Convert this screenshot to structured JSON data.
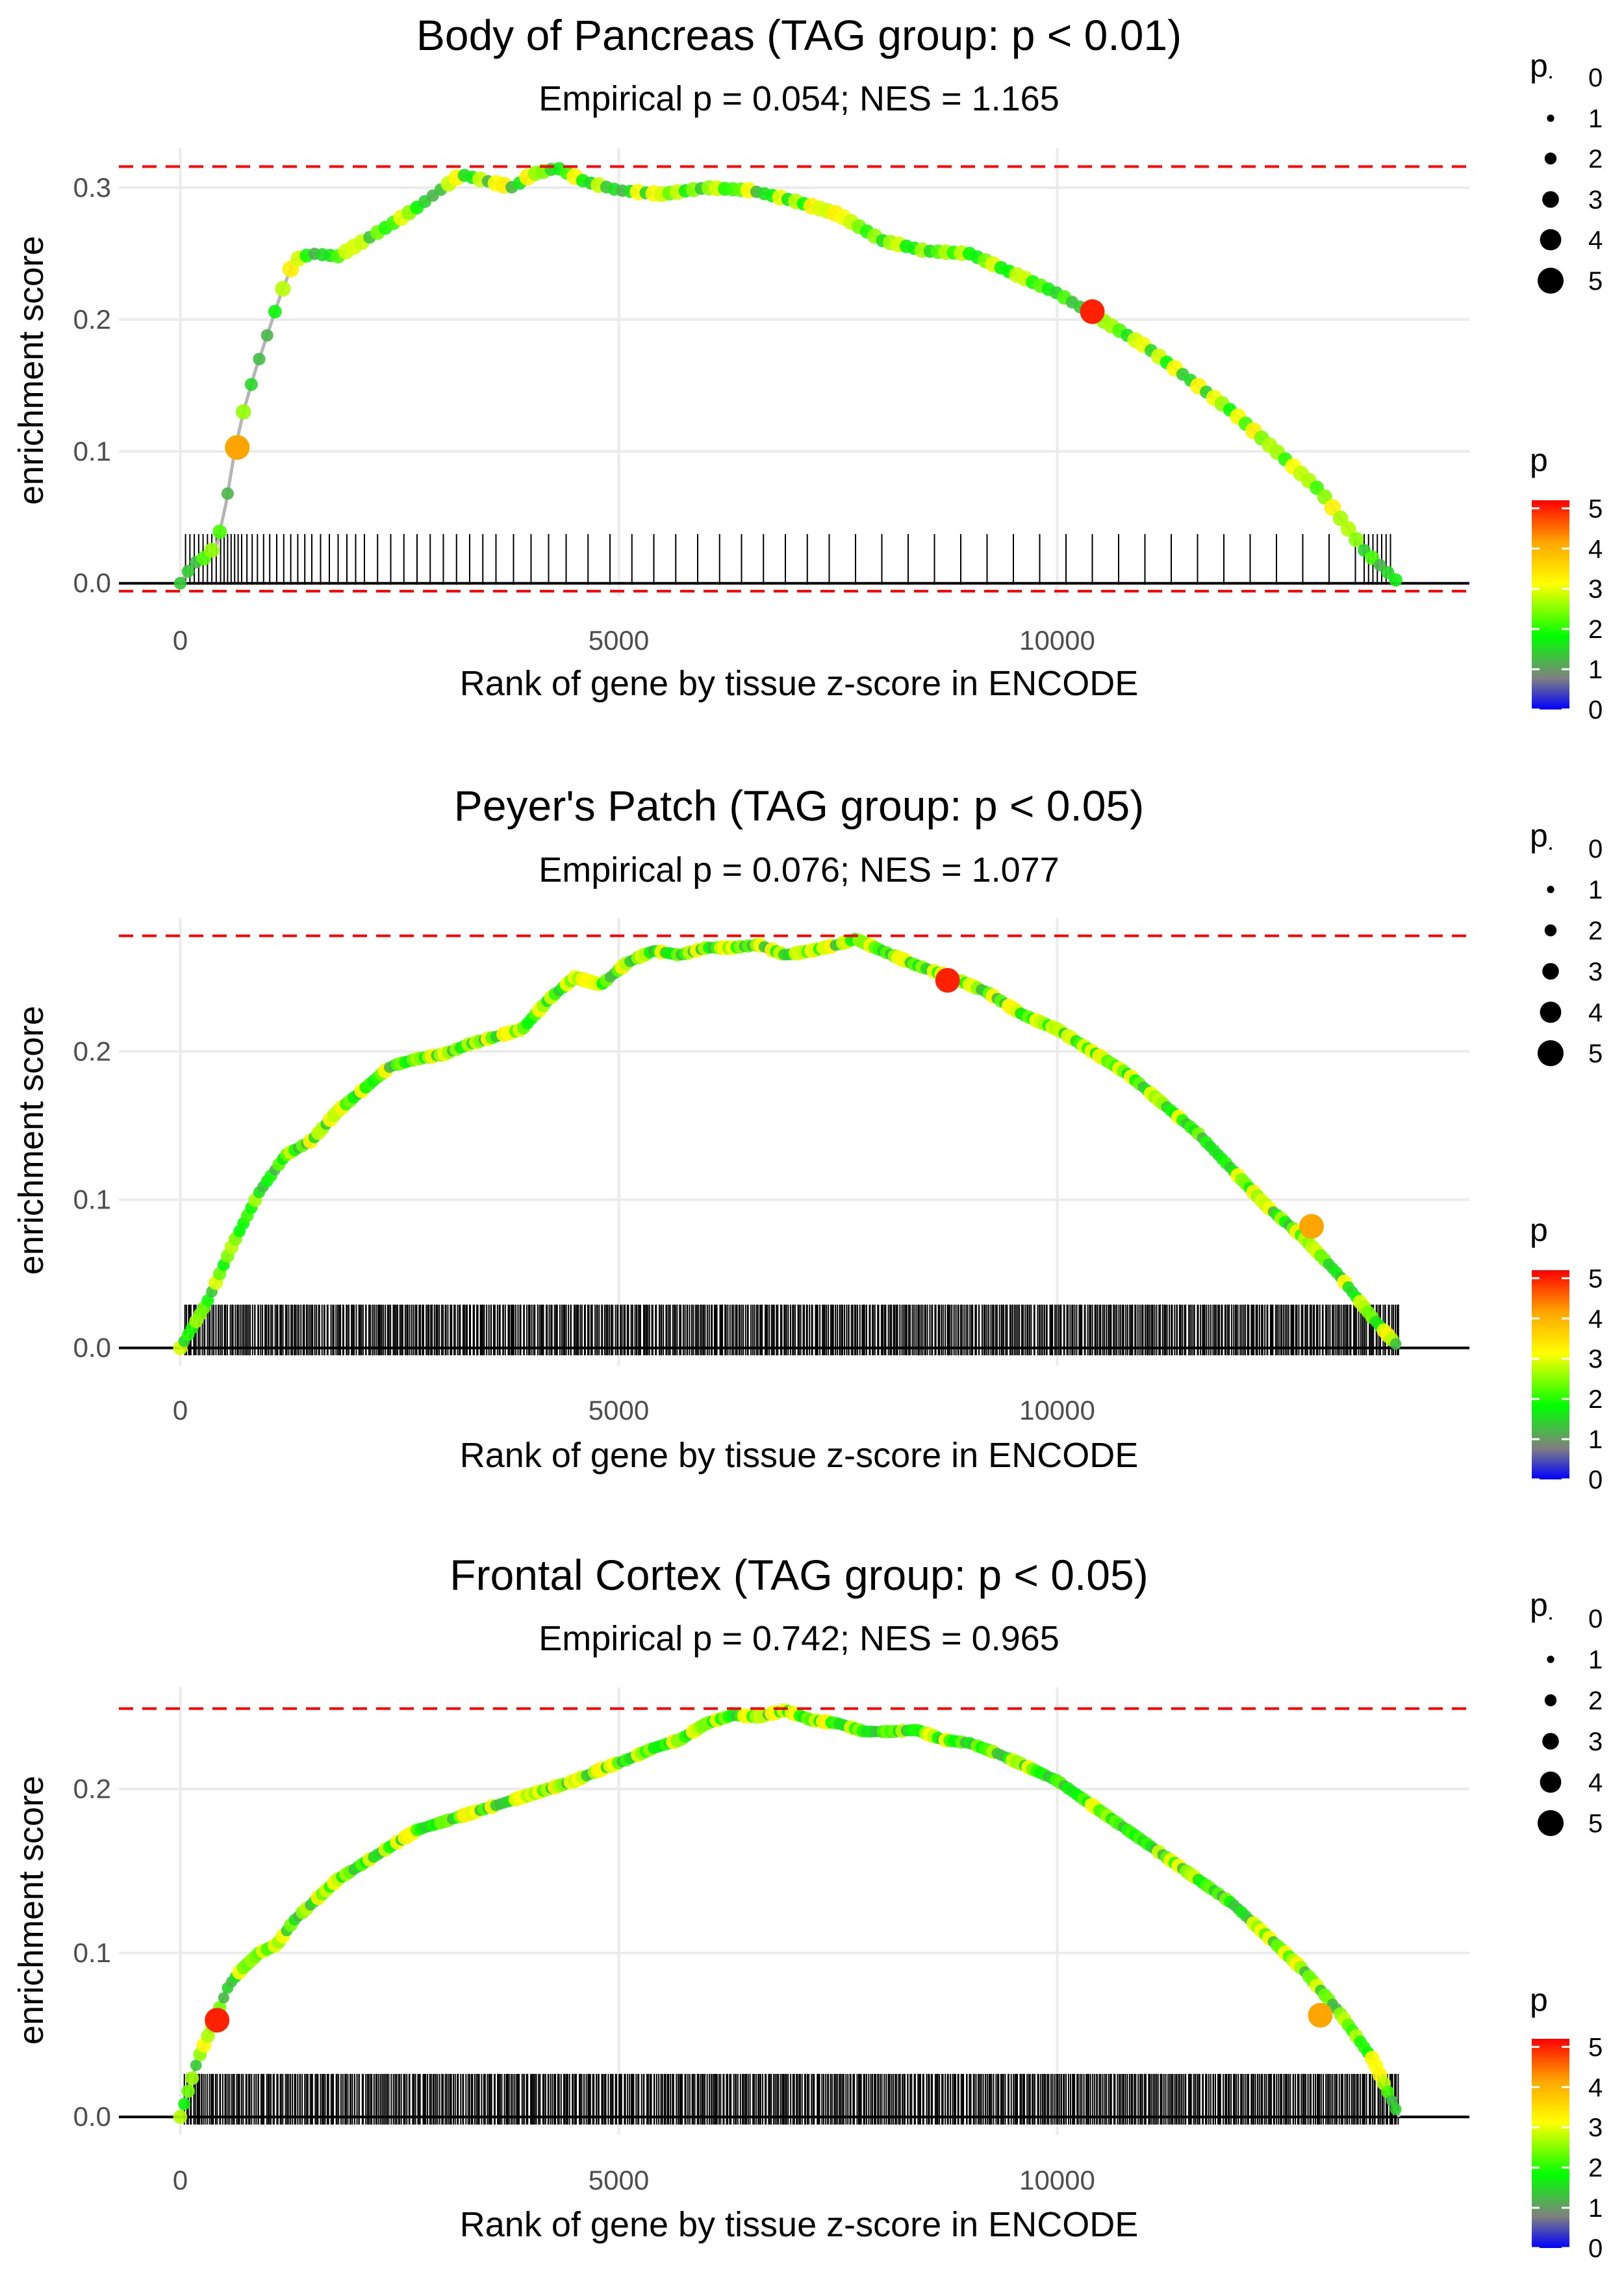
{
  "chart_data": [
    {
      "type": "line",
      "title": "Body of Pancreas (TAG group: p < 0.01)",
      "subtitle": "Empirical p = 0.054; NES = 1.165",
      "xlabel": "Rank of gene by tissue z-score in ENCODE",
      "ylabel": "enrichment score",
      "xlim": [
        -700,
        14700
      ],
      "ylim": [
        -0.01,
        0.33
      ],
      "xticks": [
        0,
        5000,
        10000
      ],
      "xtick_labels": [
        "0",
        "5000",
        "10000"
      ],
      "yticks": [
        0.0,
        0.1,
        0.2,
        0.3
      ],
      "ytick_labels": [
        "0.0",
        "0.1",
        "0.2",
        "0.3"
      ],
      "max_es": 0.316,
      "min_es": -0.006,
      "curve_x": [
        0,
        150,
        300,
        420,
        520,
        620,
        720,
        850,
        1000,
        1150,
        1300,
        1500,
        1800,
        2100,
        2400,
        2700,
        3000,
        3200,
        3500,
        3800,
        4000,
        4300,
        4600,
        5000,
        5500,
        6000,
        6500,
        7000,
        7500,
        8000,
        8500,
        9000,
        9500,
        10000,
        10500,
        11000,
        11500,
        12000,
        12500,
        13000,
        13500,
        13900
      ],
      "curve_y": [
        0.0,
        0.015,
        0.02,
        0.03,
        0.06,
        0.1,
        0.13,
        0.16,
        0.19,
        0.22,
        0.245,
        0.25,
        0.248,
        0.26,
        0.272,
        0.285,
        0.3,
        0.31,
        0.305,
        0.3,
        0.31,
        0.315,
        0.305,
        0.298,
        0.295,
        0.3,
        0.298,
        0.29,
        0.28,
        0.26,
        0.252,
        0.25,
        0.235,
        0.22,
        0.2,
        0.18,
        0.155,
        0.13,
        0.1,
        0.07,
        0.025,
        0.0
      ],
      "hit_ranks": [
        60,
        110,
        160,
        210,
        260,
        310,
        360,
        410,
        460,
        500,
        540,
        580,
        620,
        660,
        700,
        760,
        820,
        880,
        950,
        1020,
        1100,
        1180,
        1260,
        1340,
        1420,
        1500,
        1600,
        1700,
        1800,
        1900,
        2000,
        2100,
        2250,
        2400,
        2550,
        2700,
        2850,
        3000,
        3150,
        3300,
        3450,
        3600,
        3800,
        4000,
        4200,
        4400,
        4650,
        4900,
        5150,
        5400,
        5650,
        5900,
        6150,
        6400,
        6650,
        6900,
        7150,
        7400,
        7700,
        8000,
        8300,
        8600,
        8900,
        9200,
        9500,
        9800,
        10100,
        10400,
        10700,
        11000,
        11300,
        11600,
        11900,
        12200,
        12500,
        12800,
        13100,
        13400,
        13500,
        13550,
        13600,
        13650,
        13700,
        13750,
        13800
      ],
      "highlight_points": [
        {
          "x": 650,
          "y": 0.103,
          "p": 4.2
        },
        {
          "x": 10400,
          "y": 0.206,
          "p": 5.0
        }
      ],
      "size_legend": {
        "title": "p",
        "labels": [
          "0",
          "1",
          "2",
          "3",
          "4",
          "5"
        ]
      },
      "color_legend": {
        "title": "p",
        "labels": [
          "0",
          "1",
          "2",
          "3",
          "4",
          "5"
        ],
        "range": [
          0,
          5.2
        ]
      }
    },
    {
      "type": "line",
      "title": "Peyer's Patch (TAG group: p < 0.05)",
      "subtitle": "Empirical p = 0.076; NES = 1.077",
      "xlabel": "Rank of gene by tissue z-score in ENCODE",
      "ylabel": "enrichment score",
      "xlim": [
        -700,
        14700
      ],
      "ylim": [
        -0.012,
        0.29
      ],
      "xticks": [
        0,
        5000,
        10000
      ],
      "xtick_labels": [
        "0",
        "5000",
        "10000"
      ],
      "yticks": [
        0.0,
        0.1,
        0.2
      ],
      "ytick_labels": [
        "0.0",
        "0.1",
        "0.2"
      ],
      "max_es": 0.278,
      "curve_x": [
        0,
        300,
        600,
        900,
        1200,
        1500,
        1800,
        2100,
        2400,
        2700,
        3000,
        3300,
        3600,
        3900,
        4200,
        4500,
        4800,
        5100,
        5400,
        5700,
        6000,
        6300,
        6600,
        6900,
        7200,
        7500,
        7700,
        8000,
        8400,
        8800,
        9200,
        9600,
        10000,
        10400,
        10800,
        11200,
        11600,
        12000,
        12400,
        12800,
        13200,
        13600,
        13900
      ],
      "curve_y": [
        0.0,
        0.03,
        0.07,
        0.105,
        0.13,
        0.14,
        0.16,
        0.175,
        0.19,
        0.195,
        0.198,
        0.205,
        0.21,
        0.215,
        0.235,
        0.25,
        0.245,
        0.26,
        0.268,
        0.265,
        0.27,
        0.27,
        0.272,
        0.265,
        0.268,
        0.272,
        0.276,
        0.268,
        0.258,
        0.25,
        0.24,
        0.225,
        0.215,
        0.2,
        0.185,
        0.165,
        0.145,
        0.12,
        0.095,
        0.075,
        0.05,
        0.02,
        0.0
      ],
      "hit_density": "dense, ranks 0 to 13900",
      "highlight_points": [
        {
          "x": 8750,
          "y": 0.248,
          "p": 5.0
        },
        {
          "x": 12900,
          "y": 0.082,
          "p": 4.2
        }
      ],
      "size_legend": {
        "title": "p",
        "labels": [
          "0",
          "1",
          "2",
          "3",
          "4",
          "5"
        ]
      },
      "color_legend": {
        "title": "p",
        "labels": [
          "0",
          "1",
          "2",
          "3",
          "4",
          "5"
        ],
        "range": [
          0,
          5.2
        ]
      }
    },
    {
      "type": "line",
      "title": "Frontal Cortex (TAG group: p < 0.05)",
      "subtitle": "Empirical p = 0.742; NES = 0.965",
      "xlabel": "Rank of gene by tissue z-score in ENCODE",
      "ylabel": "enrichment score",
      "xlim": [
        -700,
        14700
      ],
      "ylim": [
        -0.011,
        0.262
      ],
      "xticks": [
        0,
        5000,
        10000
      ],
      "xtick_labels": [
        "0",
        "5000",
        "10000"
      ],
      "yticks": [
        0.0,
        0.1,
        0.2
      ],
      "ytick_labels": [
        "0.0",
        "0.1",
        "0.2"
      ],
      "max_es": 0.249,
      "curve_x": [
        0,
        200,
        400,
        550,
        700,
        900,
        1100,
        1300,
        1500,
        1800,
        2100,
        2400,
        2700,
        3000,
        3300,
        3600,
        3900,
        4200,
        4500,
        4800,
        5100,
        5400,
        5700,
        6000,
        6300,
        6600,
        6900,
        7200,
        7500,
        7800,
        8100,
        8400,
        8700,
        9000,
        9300,
        9600,
        10000,
        10400,
        10800,
        11200,
        11600,
        12000,
        12400,
        12800,
        13200,
        13600,
        13900
      ],
      "curve_y": [
        0.0,
        0.035,
        0.06,
        0.08,
        0.09,
        0.1,
        0.105,
        0.12,
        0.13,
        0.145,
        0.155,
        0.165,
        0.175,
        0.18,
        0.185,
        0.19,
        0.195,
        0.2,
        0.205,
        0.212,
        0.218,
        0.225,
        0.23,
        0.24,
        0.245,
        0.244,
        0.248,
        0.242,
        0.24,
        0.235,
        0.235,
        0.236,
        0.23,
        0.228,
        0.222,
        0.215,
        0.205,
        0.19,
        0.175,
        0.16,
        0.145,
        0.13,
        0.11,
        0.09,
        0.065,
        0.035,
        0.0
      ],
      "hit_density": "dense, ranks 0 to 13900",
      "highlight_points": [
        {
          "x": 420,
          "y": 0.059,
          "p": 5.0
        },
        {
          "x": 13000,
          "y": 0.062,
          "p": 4.2
        }
      ],
      "size_legend": {
        "title": "p",
        "labels": [
          "0",
          "1",
          "2",
          "3",
          "4",
          "5"
        ]
      },
      "color_legend": {
        "title": "p",
        "labels": [
          "0",
          "1",
          "2",
          "3",
          "4",
          "5"
        ],
        "range": [
          0,
          5.2
        ]
      }
    }
  ]
}
